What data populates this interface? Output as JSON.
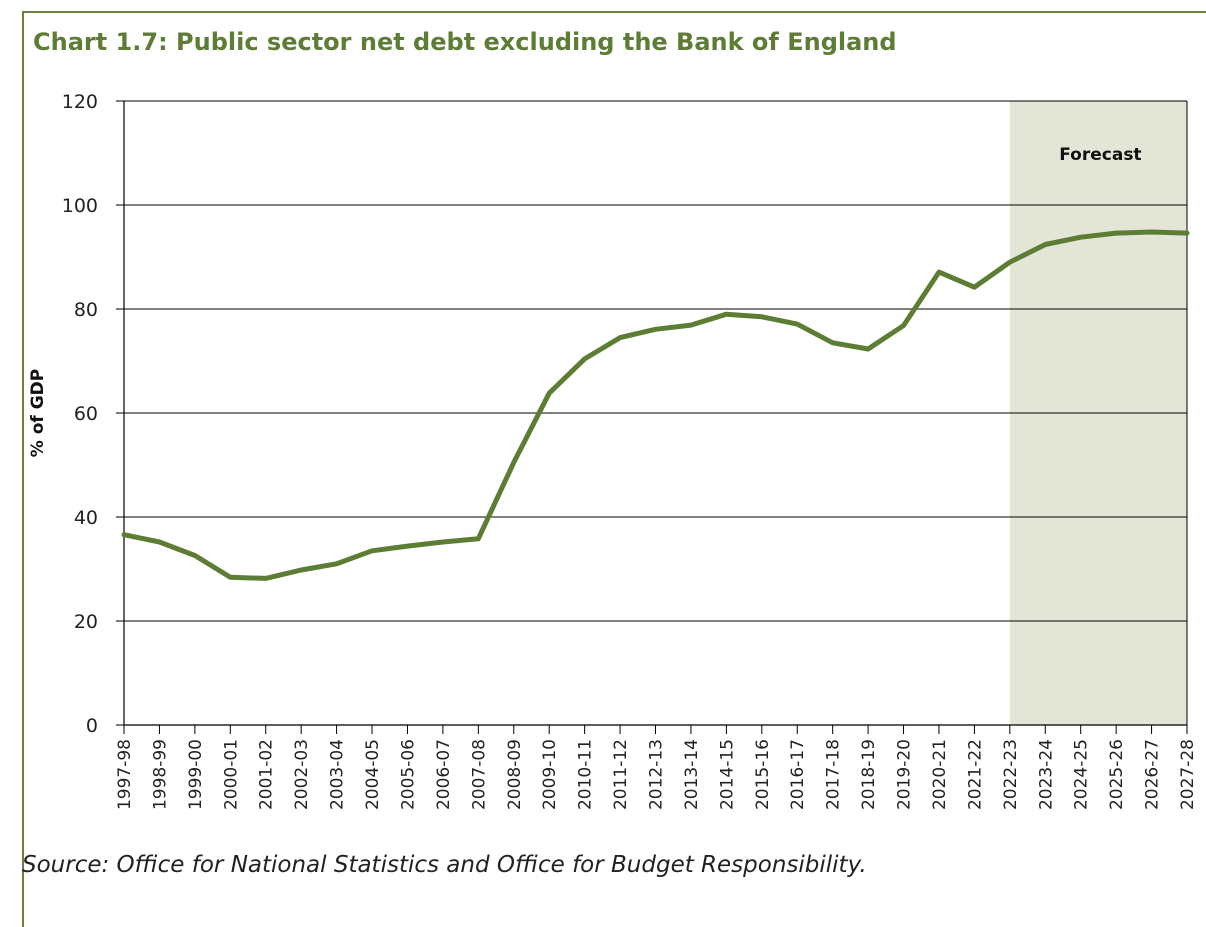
{
  "chart_data": {
    "type": "line",
    "title": "Chart 1.7: Public sector net debt excluding the Bank of England",
    "xlabel": "",
    "ylabel": "% of GDP",
    "ylim": [
      0,
      120
    ],
    "yticks": [
      0,
      20,
      40,
      60,
      80,
      100,
      120
    ],
    "grid": true,
    "categories": [
      "1997-98",
      "1998-99",
      "1999-00",
      "2000-01",
      "2001-02",
      "2002-03",
      "2003-04",
      "2004-05",
      "2005-06",
      "2006-07",
      "2007-08",
      "2008-09",
      "2009-10",
      "2010-11",
      "2011-12",
      "2012-13",
      "2013-14",
      "2014-15",
      "2015-16",
      "2016-17",
      "2017-18",
      "2018-19",
      "2019-20",
      "2020-21",
      "2021-22",
      "2022-23",
      "2023-24",
      "2024-25",
      "2025-26",
      "2026-27",
      "2027-28"
    ],
    "series": [
      {
        "values": [
          36.6,
          35.2,
          32.6,
          28.4,
          28.2,
          29.8,
          31.0,
          33.5,
          34.4,
          35.2,
          35.8,
          50.5,
          63.8,
          70.4,
          74.5,
          76.1,
          76.9,
          79.0,
          78.5,
          77.1,
          73.5,
          72.3,
          76.8,
          87.1,
          84.2,
          89.0,
          92.4,
          93.8,
          94.6,
          94.8,
          94.6
        ]
      }
    ],
    "forecast_region": {
      "label": "Forecast",
      "start": "2022-23",
      "end": "2027-28"
    },
    "colors": {
      "line": "#5e7d34",
      "forecast_shade": "#e3e6d7",
      "title": "#5e7d34",
      "frame": "#6b7f3e"
    }
  },
  "source": "Source: Office for National Statistics and Office for Budget Responsibility."
}
